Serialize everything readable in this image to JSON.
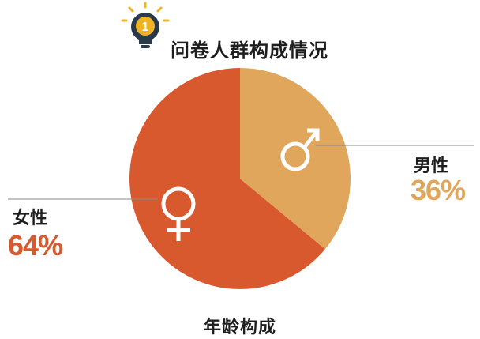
{
  "header": {
    "badge_number": "1",
    "badge_icon": "lightbulb-icon",
    "title": "问卷人群构成情况"
  },
  "footer": {
    "label": "年龄构成"
  },
  "colors": {
    "female": "#d9592f",
    "male": "#e0a65b",
    "bulb": "#f0b323",
    "bulb_dark": "#2b3a4a",
    "leader": "#888888"
  },
  "chart_data": {
    "type": "pie",
    "categories": [
      "女性",
      "男性"
    ],
    "values": [
      64,
      36
    ],
    "labels": [
      "64%",
      "36%"
    ],
    "icons": [
      "female-symbol-icon",
      "male-symbol-icon"
    ]
  }
}
